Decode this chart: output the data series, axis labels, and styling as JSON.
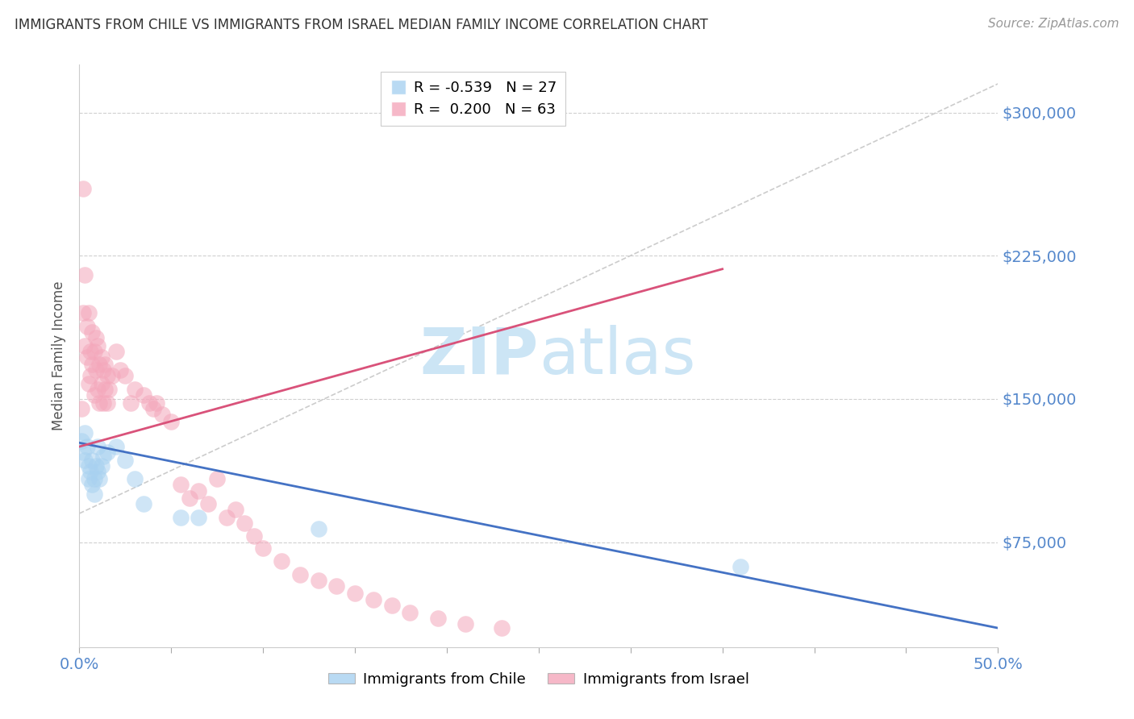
{
  "title": "IMMIGRANTS FROM CHILE VS IMMIGRANTS FROM ISRAEL MEDIAN FAMILY INCOME CORRELATION CHART",
  "source": "Source: ZipAtlas.com",
  "ylabel": "Median Family Income",
  "xmin": 0.0,
  "xmax": 0.5,
  "ymin": 20000,
  "ymax": 325000,
  "yticks": [
    75000,
    150000,
    225000,
    300000
  ],
  "ytick_labels": [
    "$75,000",
    "$150,000",
    "$225,000",
    "$300,000"
  ],
  "watermark_line1": "ZIP",
  "watermark_line2": "atlas",
  "legend_chile_R": "-0.539",
  "legend_chile_N": "27",
  "legend_israel_R": "0.200",
  "legend_israel_N": "63",
  "chile_color": "#a8d1f0",
  "israel_color": "#f4a7bb",
  "chile_line_color": "#4472c4",
  "israel_line_color": "#d9527a",
  "grid_color": "#d0d0d0",
  "background_color": "#ffffff",
  "title_color": "#333333",
  "axis_tick_color": "#5588cc",
  "chile_scatter_x": [
    0.001,
    0.002,
    0.003,
    0.003,
    0.004,
    0.005,
    0.005,
    0.006,
    0.007,
    0.007,
    0.008,
    0.008,
    0.009,
    0.01,
    0.01,
    0.011,
    0.012,
    0.013,
    0.015,
    0.02,
    0.025,
    0.03,
    0.035,
    0.055,
    0.065,
    0.13,
    0.36
  ],
  "chile_scatter_y": [
    128000,
    122000,
    118000,
    132000,
    125000,
    115000,
    108000,
    112000,
    118000,
    105000,
    100000,
    108000,
    115000,
    112000,
    125000,
    108000,
    115000,
    120000,
    122000,
    125000,
    118000,
    108000,
    95000,
    88000,
    88000,
    82000,
    62000
  ],
  "israel_scatter_x": [
    0.001,
    0.002,
    0.002,
    0.003,
    0.003,
    0.004,
    0.004,
    0.005,
    0.005,
    0.006,
    0.006,
    0.007,
    0.007,
    0.008,
    0.008,
    0.009,
    0.009,
    0.01,
    0.01,
    0.011,
    0.011,
    0.012,
    0.012,
    0.013,
    0.013,
    0.014,
    0.014,
    0.015,
    0.015,
    0.016,
    0.018,
    0.02,
    0.022,
    0.025,
    0.028,
    0.03,
    0.035,
    0.038,
    0.04,
    0.042,
    0.045,
    0.05,
    0.055,
    0.06,
    0.065,
    0.07,
    0.075,
    0.08,
    0.085,
    0.09,
    0.095,
    0.1,
    0.11,
    0.12,
    0.13,
    0.14,
    0.15,
    0.16,
    0.17,
    0.18,
    0.195,
    0.21,
    0.23
  ],
  "israel_scatter_y": [
    145000,
    195000,
    260000,
    178000,
    215000,
    172000,
    188000,
    158000,
    195000,
    175000,
    162000,
    168000,
    185000,
    152000,
    175000,
    165000,
    182000,
    155000,
    178000,
    148000,
    168000,
    158000,
    172000,
    148000,
    165000,
    155000,
    168000,
    148000,
    162000,
    155000,
    162000,
    175000,
    165000,
    162000,
    148000,
    155000,
    152000,
    148000,
    145000,
    148000,
    142000,
    138000,
    105000,
    98000,
    102000,
    95000,
    108000,
    88000,
    92000,
    85000,
    78000,
    72000,
    65000,
    58000,
    55000,
    52000,
    48000,
    45000,
    42000,
    38000,
    35000,
    32000,
    30000
  ],
  "chile_line_x0": 0.0,
  "chile_line_x1": 0.5,
  "chile_line_y0": 127000,
  "chile_line_y1": 30000,
  "israel_line_x0": 0.0,
  "israel_line_x1": 0.35,
  "israel_line_y0": 125000,
  "israel_line_y1": 218000,
  "dash_line_x0": 0.0,
  "dash_line_x1": 0.5,
  "dash_line_y0": 90000,
  "dash_line_y1": 315000
}
